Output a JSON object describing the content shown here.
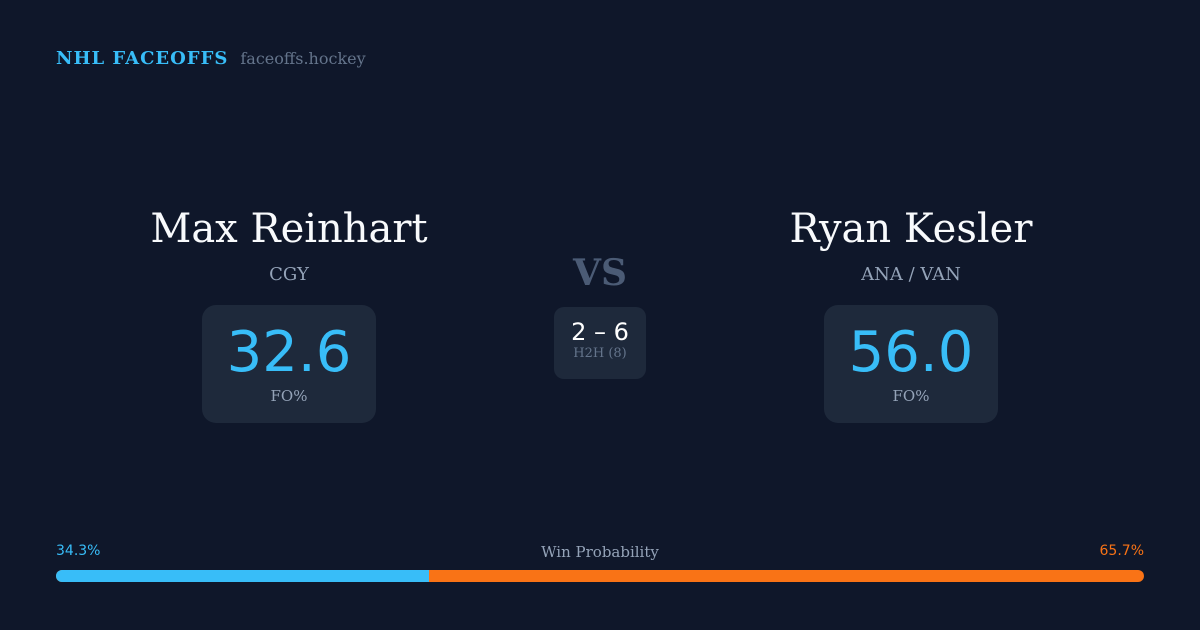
{
  "brand": {
    "title": "NHL FACEOFFS",
    "domain": "faceoffs.hockey"
  },
  "player1": {
    "name": "Max Reinhart",
    "team": "CGY",
    "fo_pct": "32.6",
    "fo_label": "FO%"
  },
  "player2": {
    "name": "Ryan Kesler",
    "team": "ANA / VAN",
    "fo_pct": "56.0",
    "fo_label": "FO%"
  },
  "vs": "VS",
  "h2h": {
    "score": "2 – 6",
    "label": "H2H (8)"
  },
  "win_probability": {
    "label": "Win Probability",
    "left": "34.3%",
    "right": "65.7%",
    "left_value": 34.3,
    "right_value": 65.7
  },
  "colors": {
    "accent_left": "#38bdf8",
    "accent_right": "#f97316",
    "background": "#0f172a"
  }
}
